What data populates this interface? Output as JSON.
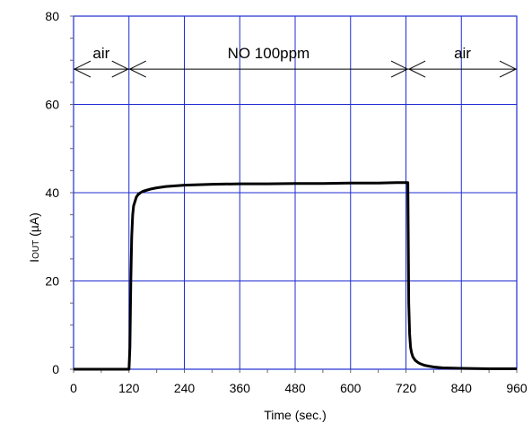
{
  "chart_data": {
    "type": "line",
    "title": "",
    "xlabel": "Time (sec.)",
    "ylabel_main": "I",
    "ylabel_sub": "OUT",
    "ylabel_unit": " (µA)",
    "xlim": [
      0,
      960
    ],
    "ylim": [
      0,
      80
    ],
    "x_ticks": [
      0,
      120,
      240,
      360,
      480,
      600,
      720,
      840,
      960
    ],
    "x_tick_labels": [
      "0",
      "120",
      "240",
      "360",
      "480",
      "600",
      "720",
      "840",
      "960"
    ],
    "y_ticks": [
      0,
      20,
      40,
      60,
      80
    ],
    "y_tick_labels": [
      "0",
      "20",
      "40",
      "60",
      "80"
    ],
    "grid": true,
    "legend": "none",
    "colors": {
      "grid": "#1f2bd1",
      "line": "#000000",
      "frame": "#1f2bd1"
    },
    "annotations": [
      {
        "label": "air",
        "x_start": 0,
        "x_end": 120,
        "y": 68
      },
      {
        "label": "NO 100ppm",
        "x_start": 120,
        "x_end": 725,
        "y": 68
      },
      {
        "label": "air",
        "x_start": 725,
        "x_end": 960,
        "y": 68
      }
    ],
    "series": [
      {
        "x": [
          0,
          60,
          120,
          122,
          124,
          126,
          128,
          130,
          133,
          136,
          140,
          145,
          150,
          160,
          170,
          180,
          200,
          240,
          300,
          360,
          420,
          480,
          540,
          600,
          660,
          700,
          720,
          724,
          726,
          728,
          730,
          732,
          735,
          740,
          745,
          750,
          760,
          770,
          780,
          800,
          840,
          900,
          960
        ],
        "y": [
          0,
          0,
          0,
          5,
          20,
          30,
          35,
          37,
          38,
          39,
          39.6,
          40.0,
          40.3,
          40.6,
          40.9,
          41.1,
          41.4,
          41.7,
          41.9,
          42.0,
          42.0,
          42.1,
          42.1,
          42.2,
          42.2,
          42.3,
          42.3,
          42.3,
          15,
          8,
          5,
          3.8,
          2.8,
          2.0,
          1.6,
          1.3,
          0.9,
          0.7,
          0.5,
          0.3,
          0.2,
          0.1,
          0.1
        ]
      }
    ]
  }
}
